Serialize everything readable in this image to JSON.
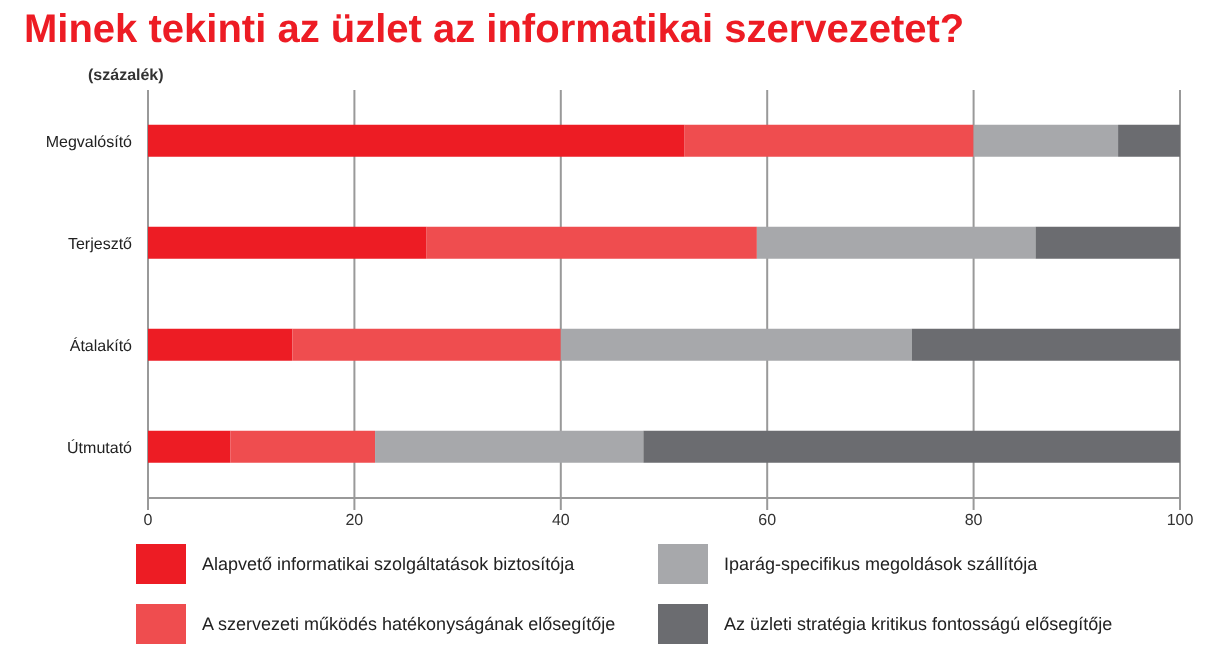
{
  "chart_data": {
    "type": "bar",
    "orientation": "horizontal",
    "stacked": true,
    "title": "Minek tekinti az üzlet az informatikai szervezetet?",
    "subtitle": "(százalék)",
    "categories": [
      "Megvalósító",
      "Terjesztő",
      "Átalakító",
      "Útmutató"
    ],
    "series": [
      {
        "name": "Alapvető informatikai szolgáltatások biztosítója",
        "color": "#ed1c24",
        "values": [
          52,
          27,
          14,
          8
        ]
      },
      {
        "name": "A szervezeti működés hatékonyságának elősegítője",
        "color": "#ef4d4f",
        "values": [
          28,
          32,
          26,
          14
        ]
      },
      {
        "name": "Iparág-specifikus megoldások szállítója",
        "color": "#a7a8ab",
        "values": [
          14,
          27,
          34,
          26
        ]
      },
      {
        "name": "Az üzleti stratégia kritikus fontosságú elősegítője",
        "color": "#6b6c70",
        "values": [
          6,
          14,
          26,
          52
        ]
      }
    ],
    "xlim": [
      0,
      100
    ],
    "xticks": [
      0,
      20,
      40,
      60,
      80,
      100
    ],
    "grid": "x",
    "legend": "bottom"
  }
}
